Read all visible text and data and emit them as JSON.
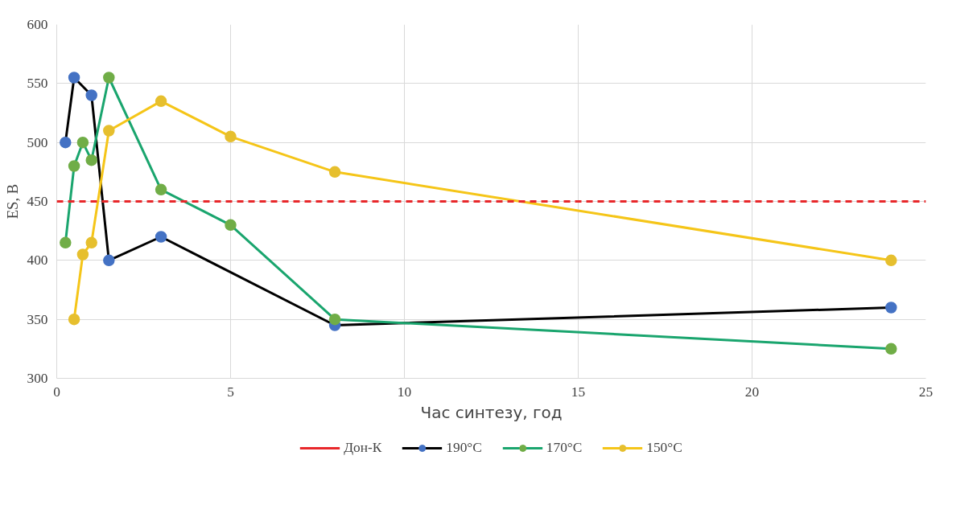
{
  "chart_data": {
    "type": "line",
    "xlabel": "Час синтезу, год",
    "ylabel": "ES, В",
    "xlim": [
      0,
      25
    ],
    "ylim": [
      300,
      600
    ],
    "xticks": [
      0,
      5,
      10,
      15,
      20,
      25
    ],
    "yticks": [
      300,
      350,
      400,
      450,
      500,
      550,
      600
    ],
    "grid": true,
    "legend": "bottom",
    "marker": "circle",
    "ref_lines": [
      {
        "axis": "y",
        "value": 450,
        "label": "Дон-К",
        "color": "#e8272a",
        "line_style": "dashed"
      }
    ],
    "series": [
      {
        "name": "190°C",
        "color": "#000000",
        "colors": [
          "#4472c4",
          "#4472c4",
          "#4472c4",
          "#4472c4",
          "#4472c4",
          "#4472c4",
          "#4472c4"
        ],
        "x": [
          0.25,
          0.5,
          1,
          1.5,
          3,
          8,
          24
        ],
        "values": [
          500,
          555,
          540,
          400,
          420,
          345,
          360
        ]
      },
      {
        "name": "170°C",
        "color": "#1aa56e",
        "colors": [
          "#70ad47",
          "#70ad47",
          "#70ad47",
          "#70ad47",
          "#70ad47",
          "#70ad47",
          "#70ad47",
          "#70ad47",
          "#70ad47"
        ],
        "x": [
          0.25,
          0.5,
          0.75,
          1,
          1.5,
          3,
          5,
          8,
          24
        ],
        "values": [
          415,
          480,
          500,
          485,
          555,
          460,
          430,
          350,
          325
        ]
      },
      {
        "name": "150°C",
        "color": "#f5c518",
        "colors": [
          "#e6bf2e",
          "#e6bf2e",
          "#e6bf2e",
          "#e6bf2e",
          "#e6bf2e",
          "#e6bf2e",
          "#e6bf2e",
          "#e6bf2e"
        ],
        "x": [
          0.5,
          0.75,
          1,
          1.5,
          3,
          5,
          8,
          24
        ],
        "values": [
          350,
          405,
          415,
          510,
          535,
          505,
          475,
          400
        ]
      }
    ]
  }
}
